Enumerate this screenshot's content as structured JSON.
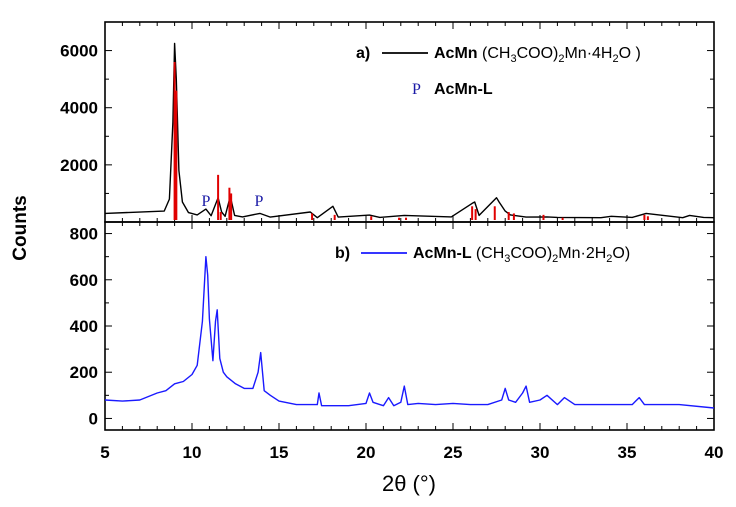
{
  "chart_data": [
    {
      "panel": "a)",
      "type": "line",
      "xlabel": "2θ (°)",
      "ylabel": "Counts",
      "xlim": [
        5,
        40
      ],
      "ylim": [
        0,
        7000
      ],
      "yticks": [
        2000,
        4000,
        6000
      ],
      "colors": {
        "line": "#000000",
        "reference": "#e00000",
        "marker": "#1a1aa6"
      },
      "legend": {
        "position": "top-right",
        "line_entry": {
          "name": "AcMn",
          "formula_parts": [
            "(CH",
            "3",
            "COO)",
            "2",
            "Mn·4H",
            "2",
            "O )"
          ]
        },
        "marker_entry": {
          "symbol": "P",
          "name": "AcMn-L"
        }
      },
      "series": [
        {
          "name": "AcMn",
          "x": [
            5,
            8.4,
            8.7,
            8.9,
            9.0,
            9.1,
            9.25,
            9.45,
            9.8,
            10.3,
            10.8,
            11.1,
            11.5,
            11.7,
            11.9,
            12.2,
            12.45,
            12.9,
            13.9,
            14.5,
            16.8,
            17.2,
            18.1,
            18.4,
            20.2,
            20.8,
            22.2,
            24.9,
            26.1,
            26.25,
            26.5,
            27.5,
            27.65,
            28.0,
            28.3,
            29.2,
            30.4,
            31.0,
            33.5,
            34.1,
            35.3,
            36.1,
            38.2,
            38.6,
            39.4,
            40
          ],
          "y": [
            300,
            380,
            800,
            3500,
            6250,
            5000,
            1800,
            700,
            330,
            250,
            450,
            220,
            850,
            350,
            200,
            900,
            230,
            180,
            300,
            170,
            350,
            150,
            550,
            170,
            240,
            160,
            230,
            180,
            650,
            700,
            230,
            850,
            700,
            380,
            250,
            170,
            180,
            160,
            150,
            200,
            160,
            300,
            150,
            230,
            160,
            150
          ]
        },
        {
          "name": "reference",
          "type": "stick",
          "x": [
            9.0,
            9.1,
            11.5,
            11.65,
            12.15,
            12.25,
            16.9,
            18.2,
            20.3,
            21.9,
            22.3,
            26.1,
            26.3,
            27.4,
            28.2,
            28.5,
            30.2,
            31.3,
            36.0,
            36.2
          ],
          "y": [
            5600,
            4600,
            1650,
            350,
            1200,
            1000,
            300,
            250,
            200,
            150,
            150,
            550,
            450,
            550,
            350,
            300,
            250,
            150,
            250,
            200
          ]
        }
      ],
      "markers": [
        {
          "label": "P",
          "x": 10.8
        },
        {
          "label": "P",
          "x": 13.85
        }
      ]
    },
    {
      "panel": "b)",
      "type": "line",
      "xlabel": "2θ (°)",
      "ylabel": "Counts",
      "xlim": [
        5,
        40
      ],
      "xticks": [
        5,
        10,
        15,
        20,
        25,
        30,
        35,
        40
      ],
      "ylim": [
        -50,
        850
      ],
      "yticks": [
        0,
        200,
        400,
        600,
        800
      ],
      "colors": {
        "line": "#1a1aff"
      },
      "legend": {
        "position": "top-right",
        "line_entry": {
          "name": "AcMn-L",
          "formula_parts": [
            "(CH",
            "3",
            "COO)",
            "2",
            "Mn·2H",
            "2",
            "O)"
          ]
        }
      },
      "series": [
        {
          "name": "AcMn-L",
          "x": [
            5,
            6,
            7,
            8,
            8.5,
            9,
            9.5,
            10,
            10.3,
            10.6,
            10.8,
            10.9,
            11.0,
            11.2,
            11.35,
            11.45,
            11.6,
            11.8,
            12.0,
            12.5,
            13.0,
            13.5,
            13.8,
            13.95,
            14.15,
            14.5,
            15,
            16,
            17.2,
            17.3,
            17.45,
            18,
            19,
            20.0,
            20.2,
            20.4,
            21.0,
            21.3,
            21.6,
            22.0,
            22.2,
            22.4,
            23,
            24,
            25,
            26,
            27,
            27.8,
            28.0,
            28.2,
            28.6,
            29.0,
            29.2,
            29.4,
            30,
            30.4,
            31,
            31.4,
            32,
            34,
            35.3,
            35.7,
            36,
            38,
            40
          ],
          "y": [
            80,
            75,
            80,
            110,
            120,
            150,
            160,
            190,
            230,
            420,
            700,
            620,
            430,
            250,
            420,
            470,
            260,
            200,
            180,
            150,
            130,
            130,
            200,
            285,
            120,
            100,
            75,
            60,
            60,
            110,
            55,
            55,
            55,
            65,
            110,
            70,
            55,
            90,
            55,
            70,
            140,
            60,
            65,
            60,
            65,
            60,
            60,
            80,
            130,
            80,
            70,
            110,
            140,
            70,
            80,
            100,
            60,
            90,
            60,
            60,
            60,
            90,
            60,
            60,
            45
          ]
        }
      ]
    }
  ]
}
